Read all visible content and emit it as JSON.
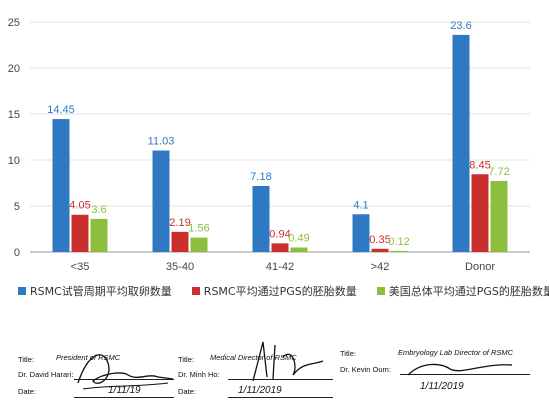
{
  "chart_data": {
    "type": "bar",
    "categories": [
      "<35",
      "35-40",
      "41-42",
      ">42",
      "Donor"
    ],
    "series": [
      {
        "name": "RSMC试管周期平均取卵数量",
        "color": "#2f78c4",
        "values": [
          14.45,
          11.03,
          7.18,
          4.1,
          23.6
        ]
      },
      {
        "name": "RSMC平均通过PGS的胚胎数量",
        "color": "#c9302c",
        "values": [
          4.05,
          2.19,
          0.94,
          0.35,
          8.45
        ]
      },
      {
        "name": "美国总体平均通过PGS的胚胎数量",
        "color": "#8dbf3f",
        "values": [
          3.6,
          1.56,
          0.49,
          0.12,
          7.72
        ]
      }
    ],
    "value_labels": [
      [
        "14.45",
        "11.03",
        "7.18",
        "4.1",
        "23.6"
      ],
      [
        "4.05",
        "2.19",
        "0.94",
        "0.35",
        "8.45"
      ],
      [
        "3.6",
        "1.56",
        "0.49",
        "0.12",
        "7.72"
      ]
    ],
    "yticks": [
      "0",
      "5",
      "10",
      "15",
      "20",
      "25"
    ],
    "ylim": [
      0,
      25
    ],
    "grid": true,
    "legend_position": "bottom",
    "title": "",
    "xlabel": "",
    "ylabel": ""
  },
  "signatures": [
    {
      "title_label": "Title:",
      "title_value": "President of RSMC",
      "name_label": "Dr. David Harari:",
      "date_label": "Date:",
      "date_value": "1/11/19"
    },
    {
      "title_label": "Title:",
      "title_value": "Medical Director of RSMC",
      "name_label": "Dr. Minh Ho:",
      "date_label": "Date:",
      "date_value": "1/11/2019"
    },
    {
      "title_label": "Title:",
      "title_value": "Embryology Lab Director of RSMC",
      "name_label": "Dr. Kevin Oum:",
      "date_label": "",
      "date_value": "1/11/2019"
    }
  ]
}
